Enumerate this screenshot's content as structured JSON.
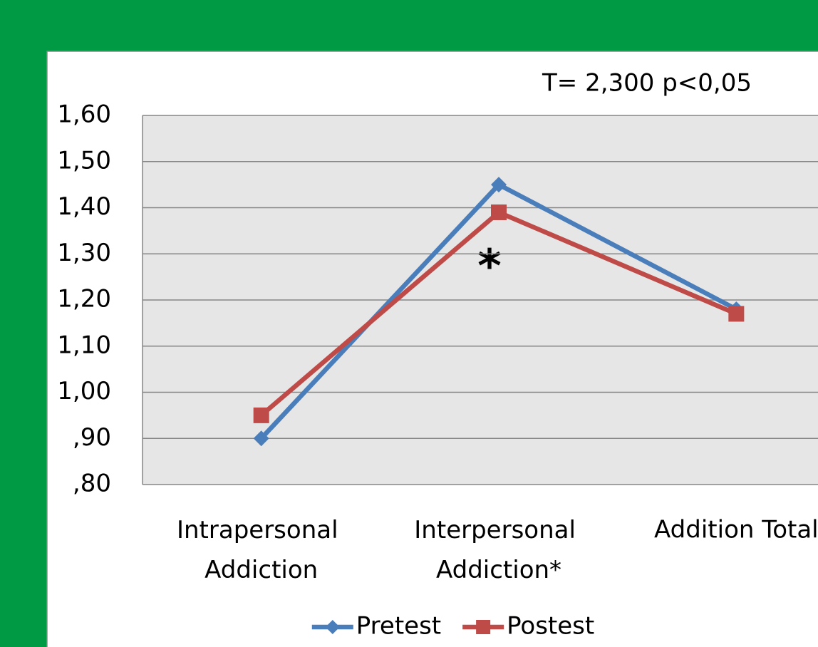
{
  "chart_data": {
    "type": "line",
    "annotations": [
      "T= 2,300 p<0,05",
      "*"
    ],
    "categories": [
      "Intrapersonal Addiction",
      "Interpersonal Addiction*",
      "Addition Total"
    ],
    "series": [
      {
        "name": "Pretest",
        "color": "#4a7ebb",
        "marker": "diamond",
        "values": [
          0.9,
          1.45,
          1.18
        ]
      },
      {
        "name": "Postest",
        "color": "#be4b48",
        "marker": "square",
        "values": [
          0.95,
          1.39,
          1.17
        ]
      }
    ],
    "ylim": [
      0.8,
      1.6
    ],
    "yticks": [
      {
        "value": 0.8,
        "label": ",80"
      },
      {
        "value": 0.9,
        "label": ",90"
      },
      {
        "value": 1.0,
        "label": "1,00"
      },
      {
        "value": 1.1,
        "label": "1,10"
      },
      {
        "value": 1.2,
        "label": "1,20"
      },
      {
        "value": 1.3,
        "label": "1,30"
      },
      {
        "value": 1.4,
        "label": "1,40"
      },
      {
        "value": 1.5,
        "label": "1,50"
      },
      {
        "value": 1.6,
        "label": "1,60"
      }
    ],
    "grid": true,
    "legend": "bottom"
  }
}
